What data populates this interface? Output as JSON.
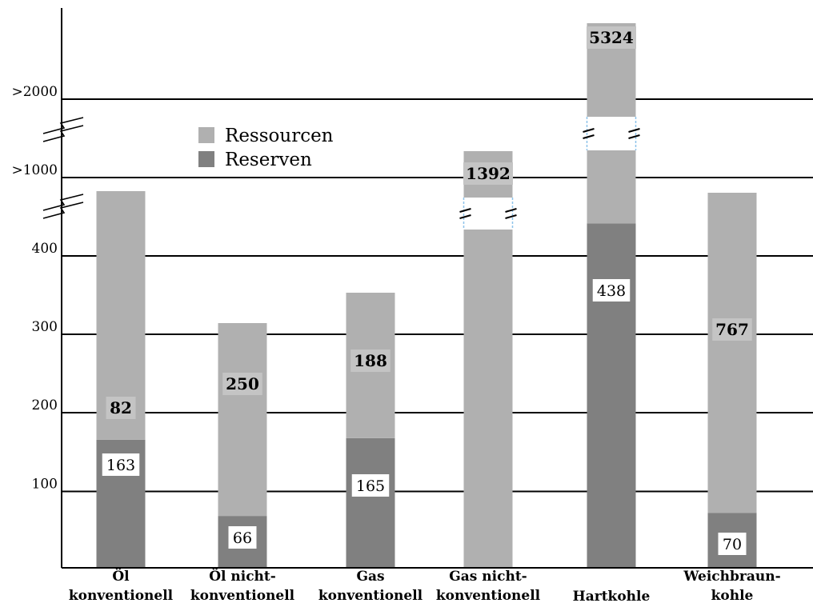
{
  "chart_data": {
    "type": "bar",
    "stacked": true,
    "categories": [
      [
        "Öl",
        "konventionell"
      ],
      [
        "Öl nicht-",
        "konventionell"
      ],
      [
        "Gas",
        "konventionell"
      ],
      [
        "Gas nicht-",
        "konventionell"
      ],
      [
        "Hartkohle"
      ],
      [
        "Weichbraun-",
        "kohle"
      ]
    ],
    "series": [
      {
        "name": "Reserven",
        "color": "#808080",
        "values": [
          163,
          66,
          165,
          null,
          438,
          70
        ]
      },
      {
        "name": "Ressourcen",
        "color": "#b0b0b0",
        "values": [
          82,
          250,
          188,
          1392,
          5324,
          767
        ]
      }
    ],
    "y_ticks": [
      "100",
      "200",
      "300",
      "400",
      ">1000",
      ">2000"
    ],
    "axis_breaks": [
      ">1000",
      ">2000"
    ],
    "legend": [
      {
        "name": "Ressourcen",
        "color": "#b0b0b0"
      },
      {
        "name": "Reserven",
        "color": "#808080"
      }
    ],
    "legend_position": "top-left",
    "grid": "horizontal",
    "title": "",
    "xlabel": "",
    "ylabel": ""
  }
}
